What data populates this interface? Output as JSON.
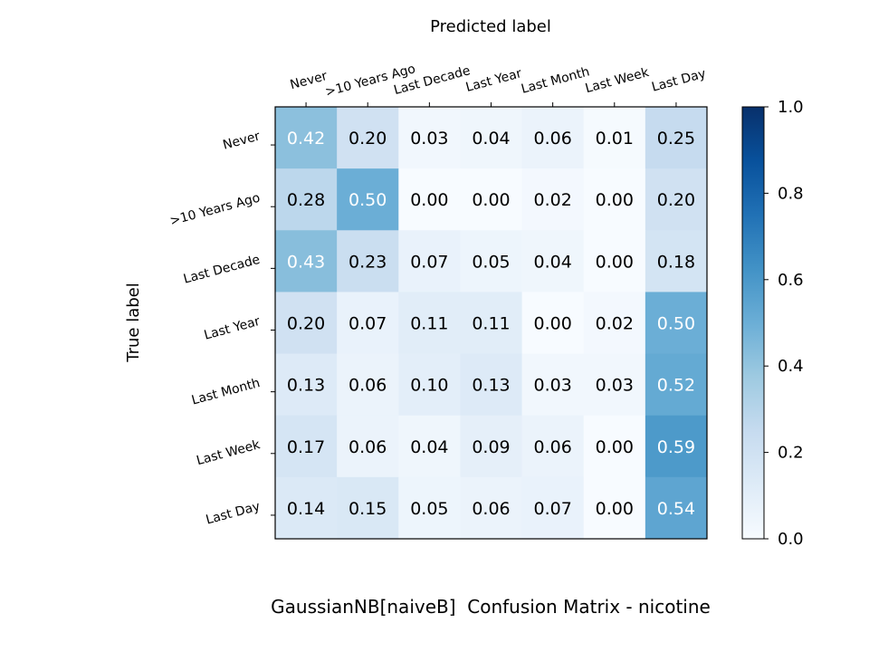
{
  "chart_data": {
    "type": "heatmap",
    "title": "GaussianNB[naiveB]  Confusion Matrix - nicotine",
    "xlabel": "Predicted label",
    "ylabel": "True label",
    "x_categories": [
      "Never",
      ">10 Years Ago",
      "Last Decade",
      "Last Year",
      "Last Month",
      "Last Week",
      "Last Day"
    ],
    "y_categories": [
      "Never",
      ">10 Years Ago",
      "Last Decade",
      "Last Year",
      "Last Month",
      "Last Week",
      "Last Day"
    ],
    "values": [
      [
        0.42,
        0.2,
        0.03,
        0.04,
        0.06,
        0.01,
        0.25
      ],
      [
        0.28,
        0.5,
        0.0,
        0.0,
        0.02,
        0.0,
        0.2
      ],
      [
        0.43,
        0.23,
        0.07,
        0.05,
        0.04,
        0.0,
        0.18
      ],
      [
        0.2,
        0.07,
        0.11,
        0.11,
        0.0,
        0.02,
        0.5
      ],
      [
        0.13,
        0.06,
        0.1,
        0.13,
        0.03,
        0.03,
        0.52
      ],
      [
        0.17,
        0.06,
        0.04,
        0.09,
        0.06,
        0.0,
        0.59
      ],
      [
        0.14,
        0.15,
        0.05,
        0.06,
        0.07,
        0.0,
        0.54
      ]
    ],
    "value_format": "0.00",
    "colormap": "Blues",
    "colorbar": {
      "range": [
        0.0,
        1.0
      ],
      "ticks": [
        0.0,
        0.2,
        0.4,
        0.6,
        0.8,
        1.0
      ],
      "tick_labels": [
        "0.0",
        "0.2",
        "0.4",
        "0.6",
        "0.8",
        "1.0"
      ]
    },
    "x_axis_position": "top",
    "legend": "colorbar-right",
    "grid": false
  }
}
